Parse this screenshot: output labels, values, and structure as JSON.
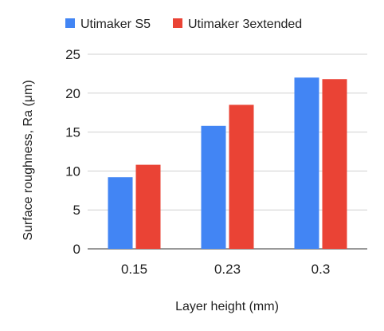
{
  "chart_data": {
    "type": "bar",
    "title": "",
    "xlabel": "Layer height (mm)",
    "ylabel": "Surface roughness, Ra (μm)",
    "categories": [
      "0.15",
      "0.23",
      "0.3"
    ],
    "series": [
      {
        "name": "Utimaker S5",
        "color": "#4285f4",
        "values": [
          9.2,
          15.8,
          22.0
        ]
      },
      {
        "name": "Utimaker 3extended",
        "color": "#ea4335",
        "values": [
          10.8,
          18.5,
          21.8
        ]
      }
    ],
    "ylim": [
      0,
      25
    ],
    "yticks": [
      "0",
      "5",
      "10",
      "15",
      "20",
      "25"
    ],
    "grid": true,
    "legend_position": "top"
  }
}
